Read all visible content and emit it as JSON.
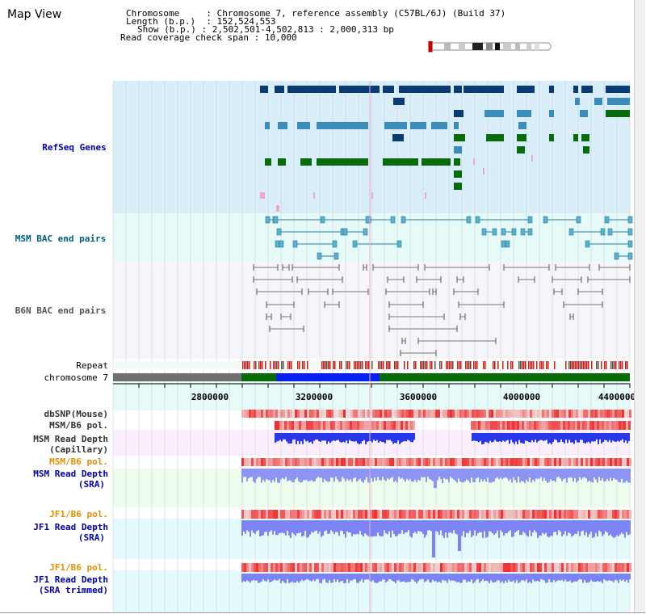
{
  "title": "Map View",
  "info": {
    "chromosome_key": "Chromosome",
    "chromosome_val": "Chromosome 7, reference assembly (C57BL/6J) (Build 37)",
    "length_key": "Length (b.p.)",
    "length_val": "152,524,553",
    "show_key": "Show (b.p.)",
    "show_val": "2,502,501-4,502,813 : 2,000,313 bp",
    "span_key": "Read coverage check span",
    "span_val": "10,000"
  },
  "tracks": {
    "refseq": "RefSeq Genes",
    "msm_bac": "MSM BAC end pairs",
    "b6n_bac": "B6N BAC end pairs",
    "repeat": "Repeat",
    "chromosome": "chromosome 7",
    "dbsnp": "dbSNP(Mouse)",
    "msm_b6_pol_1": "MSM/B6 pol.",
    "msm_depth_cap_1": "MSM Read Depth",
    "msm_depth_cap_2": "(Capillary)",
    "msm_b6_pol_2": "MSM/B6 pol.",
    "msm_depth_sra_1": "MSM Read Depth",
    "msm_depth_sra_2": "(SRA)",
    "jf1_b6_pol_1": "JF1/B6 pol.",
    "jf1_depth_sra_1": "JF1 Read Depth",
    "jf1_depth_sra_2": "(SRA)",
    "jf1_b6_pol_2": "JF1/B6 pol.",
    "jf1_depth_trim_1": "JF1 Read Depth",
    "jf1_depth_trim_2": "(SRA trimmed)"
  },
  "axis": {
    "ticks": [
      "2800000",
      "3200000",
      "3600000",
      "4000000",
      "4400000"
    ]
  },
  "colors": {
    "refseq_dark": "#0a3b73",
    "refseq_mid": "#3a8db8",
    "refseq_green": "#0a6b0a",
    "refseq_pink": "#f4a8c8",
    "msm_bac": "#2a7a9a",
    "b6n_bac": "#666666",
    "label_blue": "#0000aa",
    "label_orange": "#e09000",
    "chrom_gray": "#707070",
    "chrom_green": "#0a6b0a",
    "chrom_blue": "#0a20f0",
    "depth_blue": "#2030e0",
    "pol_red": "#e83030"
  },
  "chromosome_ideogram": "chromosome-7-ideogram"
}
